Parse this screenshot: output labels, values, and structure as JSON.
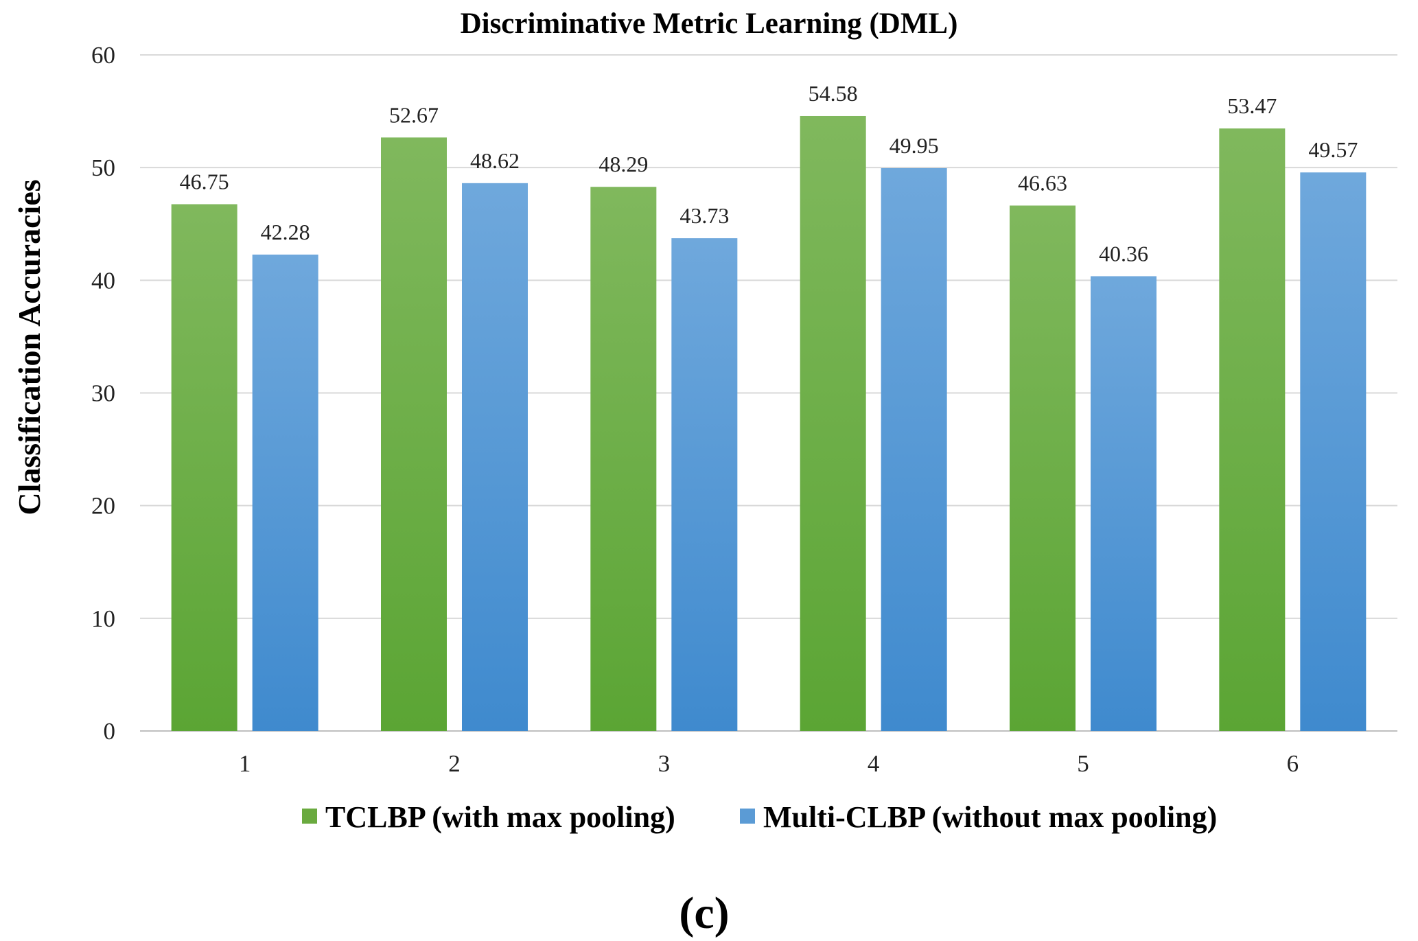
{
  "chart_data": {
    "type": "bar",
    "title": "Discriminative Metric Learning (DML)",
    "xlabel": "",
    "ylabel": "Classification Accuracies",
    "categories": [
      "1",
      "2",
      "3",
      "4",
      "5",
      "6"
    ],
    "series": [
      {
        "name": "TCLBP (with max pooling)",
        "color": "#6aaa3f",
        "values": [
          46.75,
          52.67,
          48.29,
          54.58,
          46.63,
          53.47
        ]
      },
      {
        "name": "Multi-CLBP (without max pooling)",
        "color": "#5b9bd5",
        "values": [
          42.28,
          48.62,
          43.73,
          49.95,
          40.36,
          49.57
        ]
      }
    ],
    "ylim": [
      0,
      60
    ],
    "yticks": [
      0,
      10,
      20,
      30,
      40,
      50,
      60
    ],
    "grid": true,
    "legend_position": "bottom"
  },
  "caption": "(c)"
}
